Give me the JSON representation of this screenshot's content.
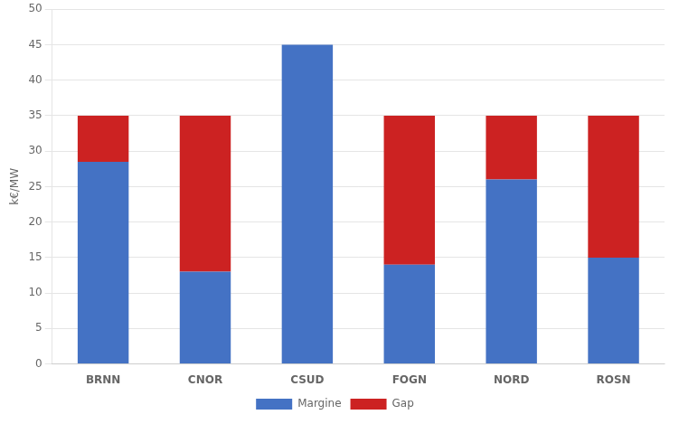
{
  "chart_data": {
    "type": "bar",
    "stacked": true,
    "categories": [
      "BRNN",
      "CNOR",
      "CSUD",
      "FOGN",
      "NORD",
      "ROSN"
    ],
    "series": [
      {
        "name": "Margine",
        "color": "#4472C4",
        "values": [
          28.5,
          13,
          45,
          14,
          26,
          15
        ]
      },
      {
        "name": "Gap",
        "color": "#CC2222",
        "values": [
          6.5,
          22,
          0,
          21,
          9,
          20
        ]
      }
    ],
    "ylabel": "k€/MW",
    "ylim": [
      0,
      50
    ],
    "yticks": [
      0,
      5,
      10,
      15,
      20,
      25,
      30,
      35,
      40,
      45,
      50
    ],
    "grid": true,
    "legend": "bottom"
  }
}
